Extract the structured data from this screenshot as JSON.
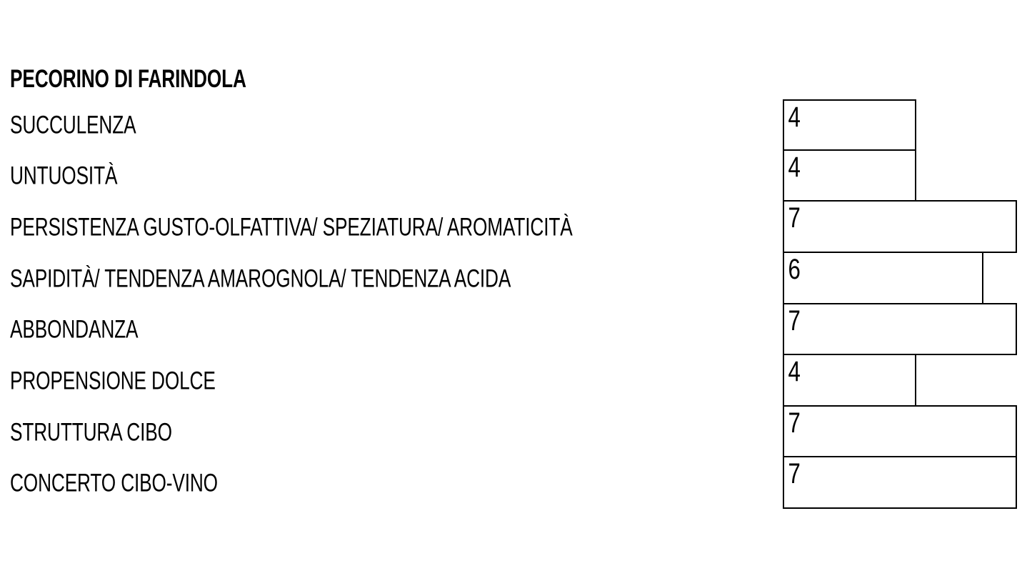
{
  "slide": {
    "background": "#ffffff",
    "text_color": "#000000"
  },
  "chart_data": {
    "type": "bar",
    "orientation": "horizontal",
    "title": "PECORINO DI FARINDOLA",
    "categories": [
      "SUCCULENZA",
      "UNTUOSITÀ",
      "PERSISTENZA GUSTO-OLFATTIVA/ SPEZIATURA/ AROMATICITÀ",
      "SAPIDITÀ/ TENDENZA AMAROGNOLA/ TENDENZA ACIDA",
      "ABBONDANZA",
      "PROPENSIONE DOLCE",
      "STRUTTURA CIBO",
      "CONCERTO CIBO-VINO"
    ],
    "values": [
      4,
      4,
      7,
      6,
      7,
      4,
      7,
      7
    ],
    "xlim": [
      0,
      7
    ],
    "grid": false,
    "legend": "none",
    "value_labels_shown": true,
    "bar_fill": "#ffffff",
    "bar_border": "#000000"
  }
}
